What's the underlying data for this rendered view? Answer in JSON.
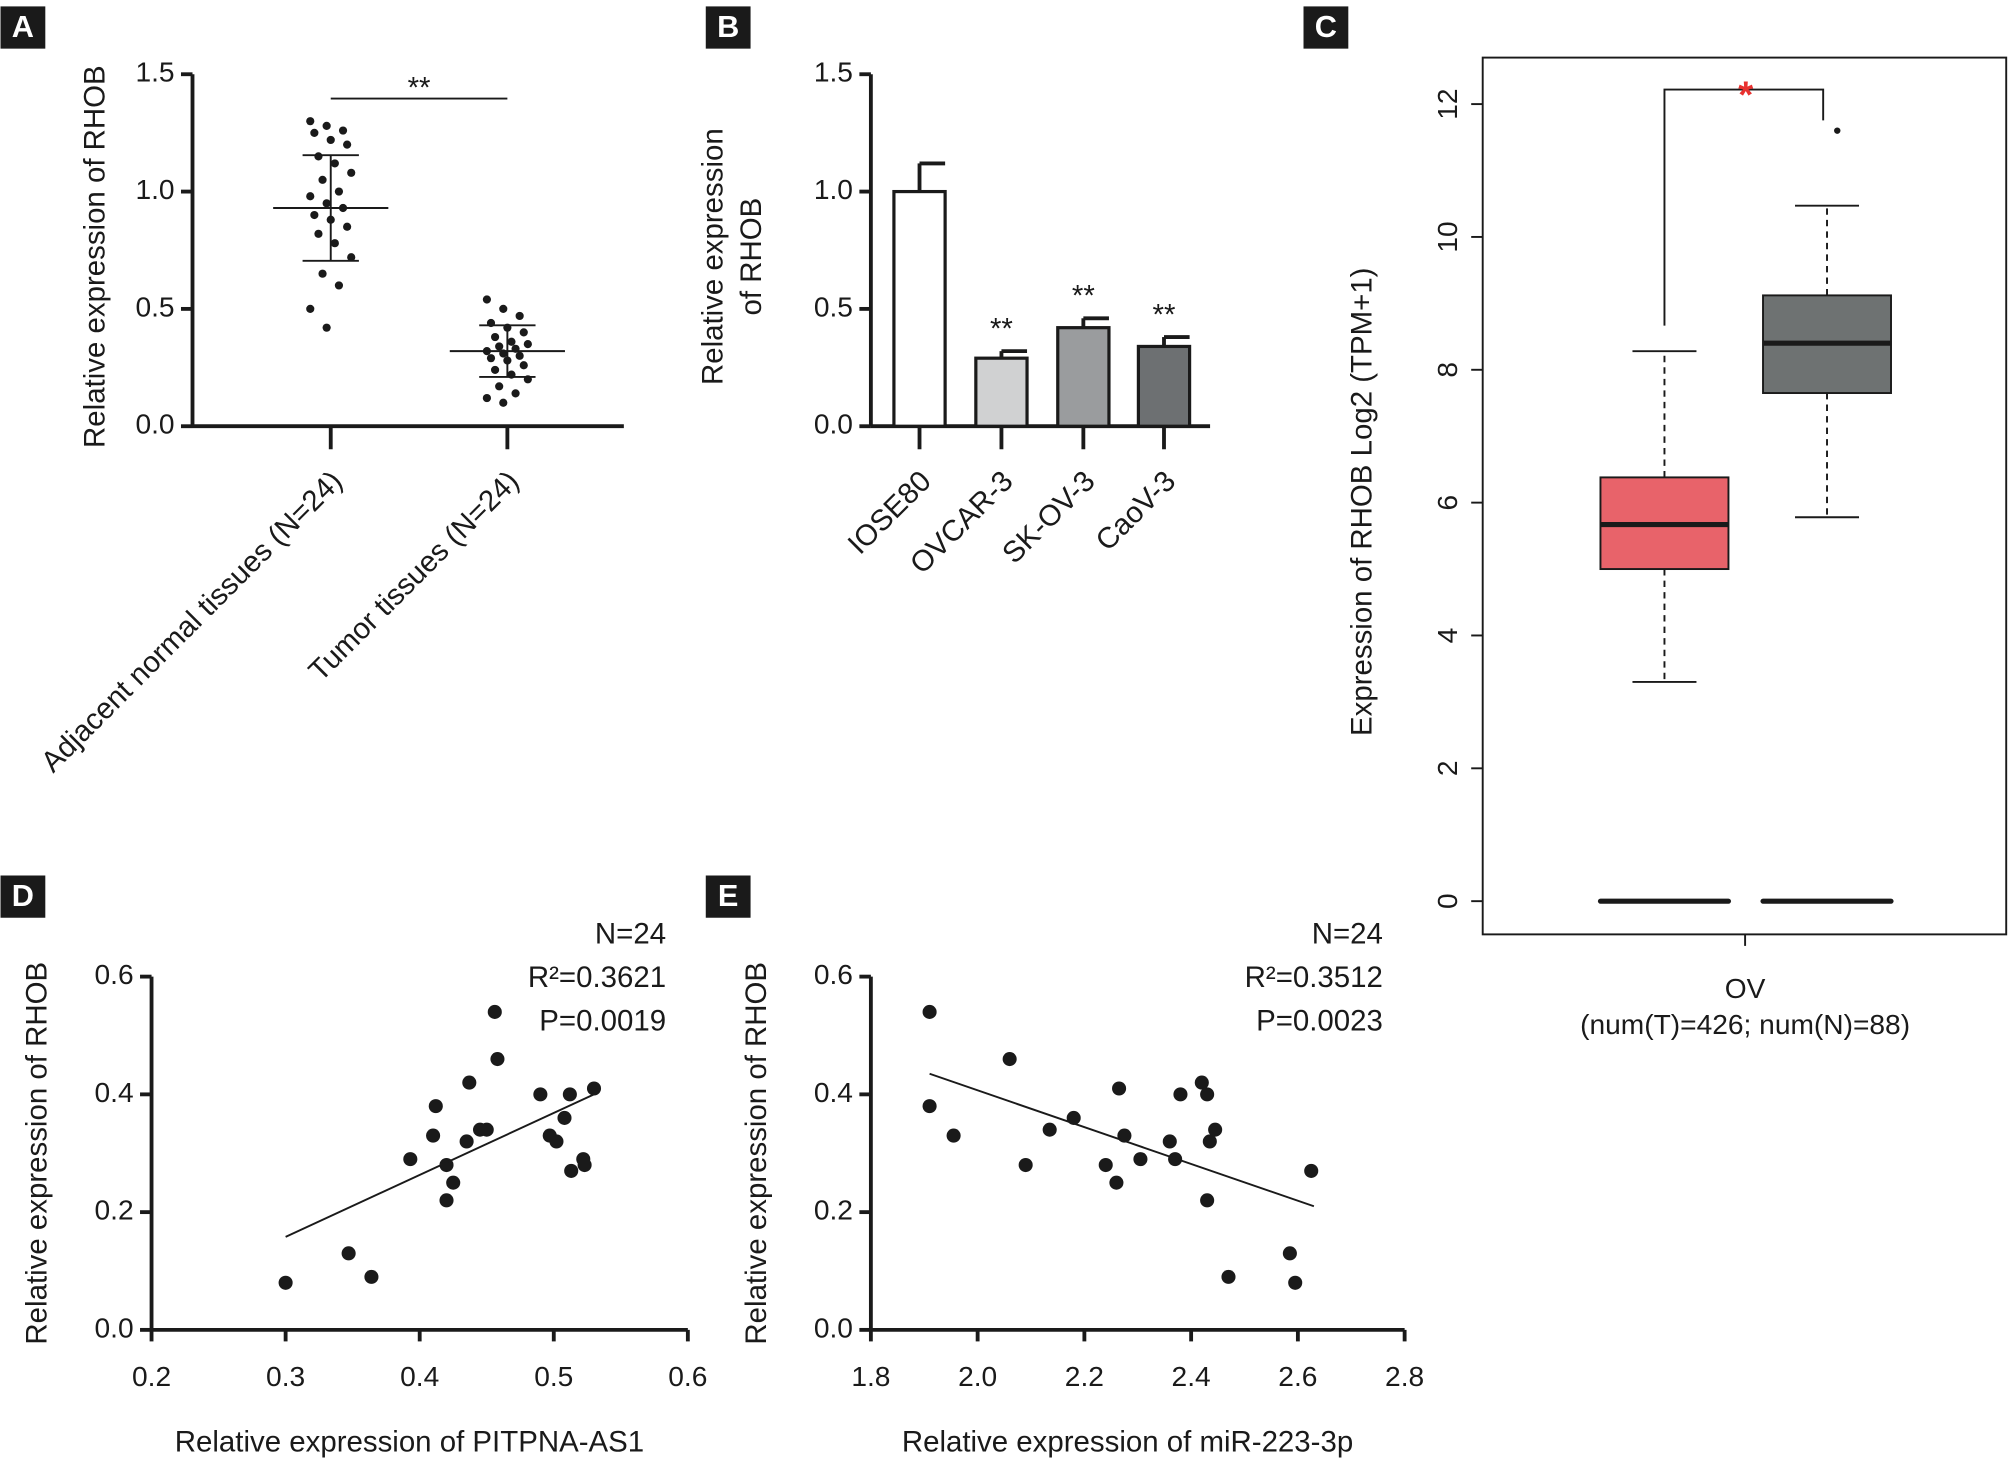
{
  "chart_data": [
    {
      "label": "A",
      "type": "dotplot",
      "ylabel": "Relative expression of RHOB",
      "categories": [
        "Adjacent normal tissues (N=24)",
        "Tumor tissues  (N=24)"
      ],
      "groups": [
        {
          "values": [
            1.3,
            1.28,
            1.26,
            1.25,
            1.22,
            1.2,
            1.15,
            1.12,
            1.08,
            1.05,
            1.0,
            0.98,
            0.95,
            0.93,
            0.9,
            0.88,
            0.85,
            0.82,
            0.78,
            0.72,
            0.65,
            0.6,
            0.5,
            0.42
          ],
          "mean": 0.93,
          "sd": 0.225
        },
        {
          "values": [
            0.54,
            0.5,
            0.47,
            0.44,
            0.42,
            0.4,
            0.38,
            0.36,
            0.35,
            0.34,
            0.33,
            0.32,
            0.31,
            0.3,
            0.29,
            0.28,
            0.26,
            0.24,
            0.22,
            0.2,
            0.17,
            0.14,
            0.12,
            0.1
          ],
          "mean": 0.32,
          "sd": 0.11
        }
      ],
      "annotation": "**",
      "color": "#1a1a1a",
      "ylim": [
        0,
        1.5
      ],
      "yticks": [
        {
          "value": 0,
          "label": "0.0"
        },
        0.5,
        {
          "value": 1,
          "label": "1.0"
        },
        1.5
      ]
    },
    {
      "label": "B",
      "type": "bar",
      "ylabel": [
        "Relative expression",
        "of RHOB"
      ],
      "categories": [
        "IOSE80",
        "OVCAR-3",
        "SK-OV-3",
        "CaoV-3"
      ],
      "values": [
        1.0,
        0.29,
        0.42,
        0.34
      ],
      "errors": [
        0.12,
        0.03,
        0.04,
        0.04
      ],
      "colors": [
        "#ffffff",
        "#d0d1d2",
        "#9a9c9e",
        "#6d7072"
      ],
      "annotations": [
        {
          "index": 1,
          "text": "**"
        },
        {
          "index": 2,
          "text": "**"
        },
        {
          "index": 3,
          "text": "**"
        }
      ],
      "ylim": [
        0,
        1.5
      ],
      "yticks": [
        {
          "value": 0,
          "label": "0.0"
        },
        0.5,
        {
          "value": 1,
          "label": "1.0"
        },
        1.5
      ]
    },
    {
      "label": "C",
      "type": "box",
      "ylabel": "Expression of RHOB Log2 (TPM+1)",
      "xlabel": "OV",
      "subtitle": "(num(T)=426; num(N)=88)",
      "boxes": [
        {
          "color": "#e8636a",
          "whisker_low": 3.3,
          "q1": 5.0,
          "median": 5.67,
          "q3": 6.38,
          "whisker_high": 8.28,
          "baseline": 0
        },
        {
          "color": "#6e7272",
          "whisker_low": 5.78,
          "q1": 7.65,
          "median": 8.4,
          "q3": 9.12,
          "whisker_high": 10.47,
          "baseline": 0,
          "outliers": [
            11.6
          ]
        }
      ],
      "annotation": "*",
      "annotation_color": "#e8312f",
      "ylim": [
        -0.5,
        12.7
      ],
      "yticks": [
        0,
        2,
        4,
        6,
        8,
        10,
        12
      ]
    },
    {
      "label": "D",
      "type": "scatter",
      "xlabel": "Relative expression of PITPNA-AS1",
      "ylabel": "Relative expression of RHOB",
      "x": [
        0.3,
        0.347,
        0.364,
        0.393,
        0.41,
        0.412,
        0.42,
        0.42,
        0.425,
        0.435,
        0.437,
        0.445,
        0.45,
        0.456,
        0.458,
        0.49,
        0.497,
        0.502,
        0.508,
        0.512,
        0.513,
        0.522,
        0.523,
        0.53
      ],
      "y": [
        0.08,
        0.13,
        0.09,
        0.29,
        0.33,
        0.38,
        0.28,
        0.22,
        0.25,
        0.32,
        0.42,
        0.34,
        0.34,
        0.54,
        0.46,
        0.4,
        0.33,
        0.32,
        0.36,
        0.4,
        0.27,
        0.29,
        0.28,
        0.41
      ],
      "fit": {
        "x": [
          0.3,
          0.53
        ],
        "y": [
          0.158,
          0.4
        ]
      },
      "stats": [
        "N=24",
        "R²=0.3621",
        "P=0.0019"
      ],
      "xlim": [
        0.2,
        0.6
      ],
      "xticks": [
        0.2,
        0.3,
        0.4,
        0.5,
        0.6
      ],
      "ylim": [
        0,
        0.6
      ],
      "yticks": [
        {
          "value": 0,
          "label": "0.0"
        },
        0.2,
        0.4,
        0.6
      ]
    },
    {
      "label": "E",
      "type": "scatter",
      "xlabel": "Relative expression of miR-223-3p",
      "ylabel": "Relative expression of RHOB",
      "x": [
        1.91,
        1.91,
        1.955,
        2.06,
        2.09,
        2.135,
        2.18,
        2.24,
        2.26,
        2.265,
        2.275,
        2.305,
        2.36,
        2.37,
        2.38,
        2.42,
        2.43,
        2.435,
        2.445,
        2.43,
        2.47,
        2.585,
        2.595,
        2.625
      ],
      "y": [
        0.54,
        0.38,
        0.33,
        0.46,
        0.28,
        0.34,
        0.36,
        0.28,
        0.25,
        0.41,
        0.33,
        0.29,
        0.32,
        0.29,
        0.4,
        0.42,
        0.22,
        0.32,
        0.34,
        0.4,
        0.09,
        0.13,
        0.08,
        0.27
      ],
      "fit": {
        "x": [
          1.91,
          2.63
        ],
        "y": [
          0.435,
          0.21
        ]
      },
      "stats": [
        "N=24",
        "R²=0.3512",
        "P=0.0023"
      ],
      "xlim": [
        1.8,
        2.8
      ],
      "xticks": [
        1.8,
        {
          "value": 2,
          "label": "2.0"
        },
        2.2,
        2.4,
        2.6,
        2.8
      ],
      "ylim": [
        0,
        0.6
      ],
      "yticks": [
        {
          "value": 0,
          "label": "0.0"
        },
        0.2,
        0.4,
        0.6
      ]
    }
  ]
}
